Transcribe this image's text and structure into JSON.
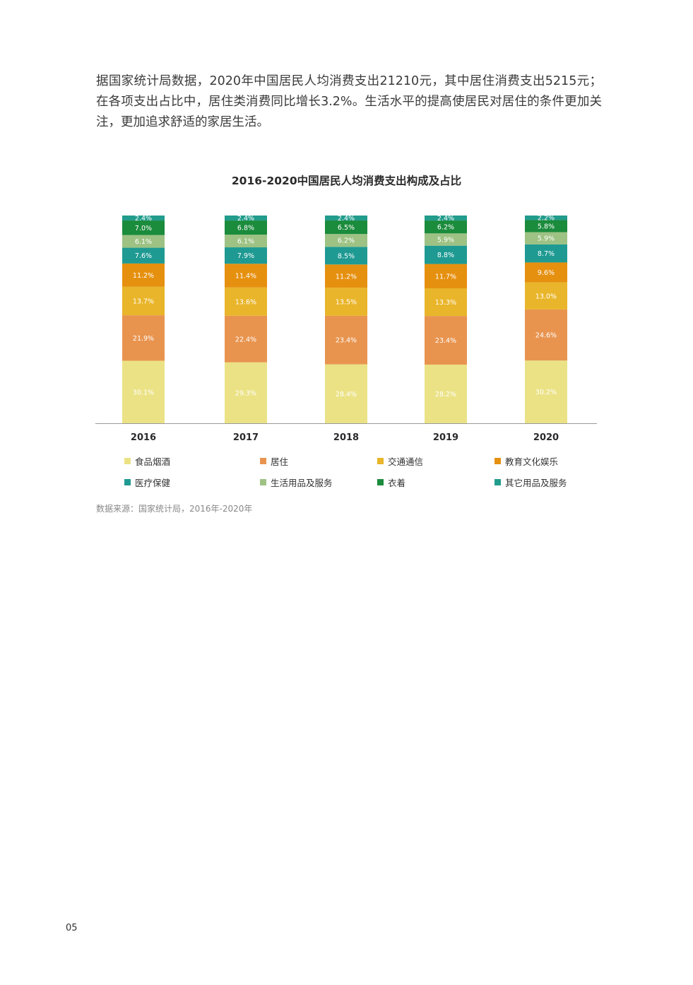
{
  "intro": {
    "text": "据国家统计局数据，2020年中国居民人均消费支出21210元，其中居住消费支出5215元；在各项支出占比中，居住类消费同比增长3.2%。生活水平的提高使居民对居住的条件更加关注，更加追求舒适的家居生活。"
  },
  "chart_data": {
    "type": "bar",
    "stacked": true,
    "title": "2016-2020中国居民人均消费支出构成及占比",
    "categories": [
      "2016",
      "2017",
      "2018",
      "2019",
      "2020"
    ],
    "series": [
      {
        "name": "食品烟酒",
        "color": "#ebe286",
        "values": [
          30.1,
          29.3,
          28.4,
          28.2,
          30.2
        ]
      },
      {
        "name": "居住",
        "color": "#e8944f",
        "values": [
          21.9,
          22.4,
          23.4,
          23.4,
          24.6
        ]
      },
      {
        "name": "交通通信",
        "color": "#e9b52a",
        "values": [
          13.7,
          13.6,
          13.5,
          13.3,
          13.0
        ]
      },
      {
        "name": "教育文化娱乐",
        "color": "#e6900f",
        "values": [
          11.2,
          11.4,
          11.2,
          11.7,
          9.6
        ]
      },
      {
        "name": "医疗保健",
        "color": "#1f9a93",
        "values": [
          7.6,
          7.9,
          8.5,
          8.8,
          8.7
        ]
      },
      {
        "name": "生活用品及服务",
        "color": "#9dc284",
        "values": [
          6.1,
          6.1,
          6.2,
          5.9,
          5.9
        ]
      },
      {
        "name": "衣着",
        "color": "#1b8b3c",
        "values": [
          7.0,
          6.8,
          6.5,
          6.2,
          5.8
        ]
      },
      {
        "name": "其它用品及服务",
        "color": "#229c8c",
        "values": [
          2.4,
          2.4,
          2.4,
          2.4,
          2.2
        ]
      }
    ],
    "ylim": [
      0,
      100
    ],
    "legend_position": "bottom",
    "label_suffix": "%"
  },
  "legend_order": [
    0,
    1,
    2,
    3,
    4,
    5,
    6,
    7
  ],
  "source": "数据来源：国家统计局，2016年-2020年",
  "page_number": "05"
}
